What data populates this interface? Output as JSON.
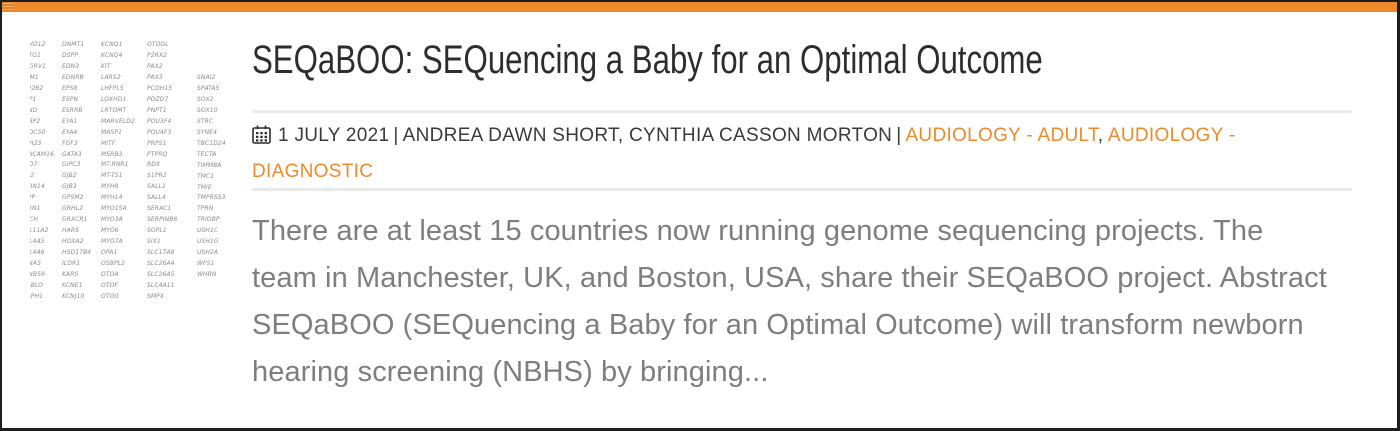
{
  "colors": {
    "accent_orange": "#ef8a2c",
    "title_text": "#2d2d2d",
    "meta_text": "#3a3a3a",
    "body_text": "#7e7e7e",
    "divider": "#e9e9e9",
    "frame_border": "#1e1e1e"
  },
  "icons": {
    "date": "calendar-icon"
  },
  "post": {
    "title": "SEQaBOO: SEQuencing a Baby for an Optimal Outcome",
    "meta": {
      "date": "1 JULY 2021",
      "separator": "|",
      "authors": "ANDREA DAWN SHORT, CYNTHIA CASSON MORTON",
      "category_separator": ",",
      "categories": [
        "AUDIOLOGY - ADULT",
        "AUDIOLOGY - DIAGNOSTIC"
      ]
    },
    "excerpt_lines": [
      "There are at least 15 countries now running genome sequencing projects. The",
      "team in Manchester, UK, and Boston, USA, share their SEQaBOO project. Abstract",
      "SEQaBOO (SEQuencing a Baby for an Optimal Outcome) will transform newborn",
      "hearing screening (NBHS) by bringing..."
    ]
  },
  "thumbnail": {
    "description": "hearing-loss gene panel list",
    "gene_columns": [
      [
        "ABHD12",
        "ACTG1",
        "ADGRV1",
        "AIFM1",
        "ATP2B2",
        "BDP1",
        "BSND",
        "CABP2",
        "CCDC50",
        "CDH23",
        "CEACAM16",
        "CHD7",
        "CIB2",
        "CLDN14",
        "CLPP",
        "CLRN1",
        "COCH",
        "COL11A2",
        "COL4A5",
        "COL4A6",
        "DFNA5",
        "DFNB59",
        "DIABLO",
        "DIAPH1"
      ],
      [
        "DNMT1",
        "DSPP",
        "EDN3",
        "EDNRB",
        "EPS8",
        "ESPN",
        "ESRRB",
        "EYA1",
        "EYA4",
        "FGF3",
        "GATA3",
        "GIPC3",
        "GJB2",
        "GJB3",
        "GPSM2",
        "GRHL2",
        "GRXCR1",
        "HARS",
        "HOXA2",
        "HSD17B4",
        "ILDR1",
        "KARS",
        "KCNE1",
        "KCNJ10"
      ],
      [
        "KCNQ1",
        "KCNQ4",
        "KIT",
        "LARS2",
        "LHFPL5",
        "LOXHD1",
        "LRTOMT",
        "MARVELD2",
        "MASP1",
        "MITF",
        "MSRB3",
        "MT-RNR1",
        "MT-TS1",
        "MYH9",
        "MYH14",
        "MYO15A",
        "MYO3A",
        "MYO6",
        "MYO7A",
        "OPA1",
        "OSBPL2",
        "OTOA",
        "OTOF",
        "OTOG"
      ],
      [
        "OTOGL",
        "P2RX2",
        "PAX2",
        "PAX3",
        "PCDH15",
        "PDZD7",
        "PNPT1",
        "POU3F4",
        "POU4F3",
        "PRPS1",
        "PTPRQ",
        "RDX",
        "S1PR2",
        "SALL1",
        "SALL4",
        "SERAC1",
        "SERPINB6",
        "SGPL1",
        "SIX1",
        "SLC17A8",
        "SLC26A4",
        "SLC26A5",
        "SLC4A11",
        "SMPX"
      ],
      [
        "SNAI2",
        "SPATA5",
        "SOX2",
        "SOX10",
        "STRC",
        "SYNE4",
        "TBC1D24",
        "TECTA",
        "TIMM8A",
        "TMC1",
        "TMIE",
        "TMPRSS3",
        "TPRN",
        "TRIOBP",
        "USH1C",
        "USH1G",
        "USH2A",
        "WFS1",
        "WHRN"
      ]
    ]
  }
}
